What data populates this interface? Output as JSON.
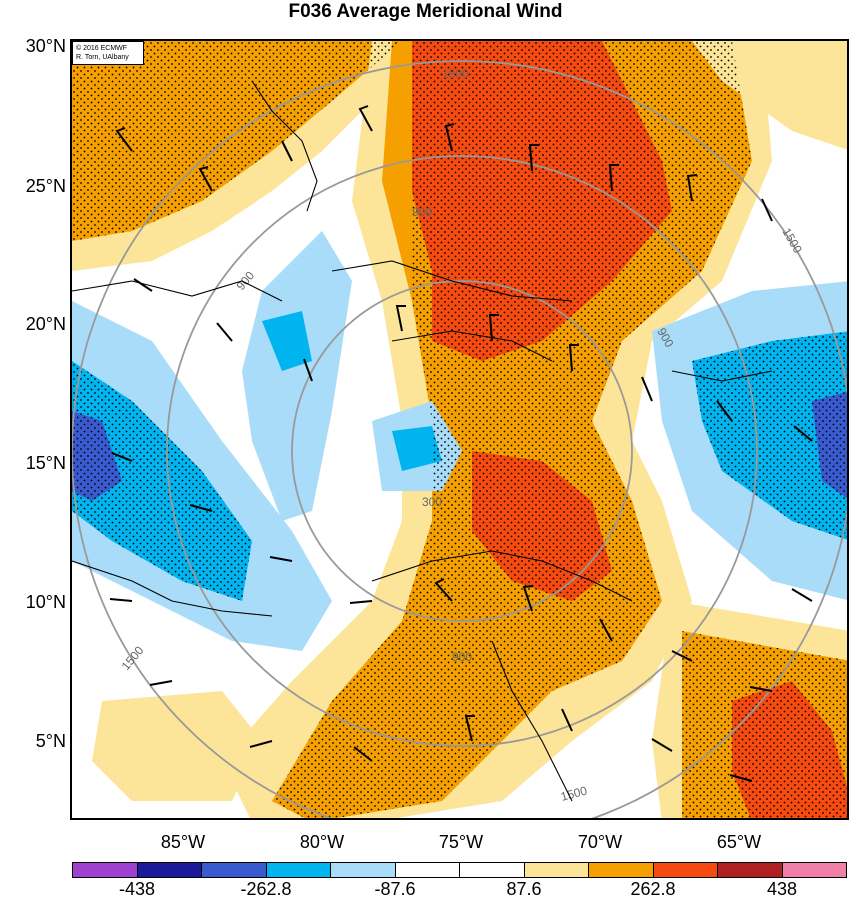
{
  "title": "F036 Average Meridional Wind",
  "credit": {
    "line1": "© 2016 ECMWF",
    "line2": "R. Torn, UAlbany"
  },
  "lat_labels": [
    "30°N",
    "25°N",
    "20°N",
    "15°N",
    "10°N",
    "5°N"
  ],
  "lon_labels": [
    "85°W",
    "80°W",
    "75°W",
    "70°W",
    "65°W"
  ],
  "contour_labels": [
    "1500",
    "900",
    "300"
  ],
  "colorbar": {
    "colors": [
      "#a040d0",
      "#1a1a9a",
      "#3a5ad0",
      "#00b4f0",
      "#a8dcf8",
      "#ffffff",
      "#ffffff",
      "#fce598",
      "#f5a000",
      "#f54a10",
      "#b02020",
      "#f080a8"
    ],
    "labels": [
      "-438",
      "-262.8",
      "-87.6",
      "87.6",
      "262.8",
      "438"
    ]
  },
  "map_colors": {
    "pos_light": "#fce598",
    "pos_mid": "#f5a000",
    "pos_strong": "#f54a10",
    "neg_light": "#a8dcf8",
    "neg_mid": "#00b4f0",
    "neg_strong": "#3a5ad0",
    "range_rings": "#999999"
  }
}
